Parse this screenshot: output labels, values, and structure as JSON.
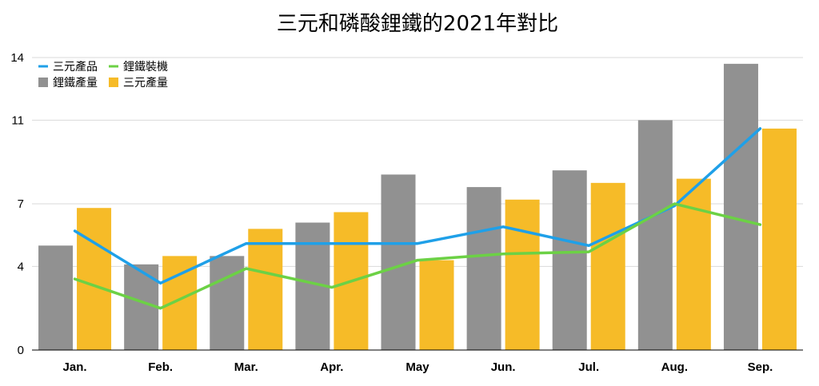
{
  "chart_data": {
    "type": "bar",
    "title": "三元和磷酸鋰鐵的2021年對比",
    "xlabel": "",
    "ylabel": "",
    "categories": [
      "Jan.",
      "Feb.",
      "Mar.",
      "Apr.",
      "May",
      "Jun.",
      "Jul.",
      "Aug.",
      "Sep."
    ],
    "ylim": [
      0,
      14
    ],
    "yticks": [
      0,
      4,
      7,
      11,
      14
    ],
    "grid": true,
    "legend_position": "top-left",
    "series": [
      {
        "name": "鋰鐵產量",
        "kind": "bar",
        "color": "#919191",
        "values": [
          5.0,
          4.1,
          4.5,
          6.1,
          8.4,
          7.8,
          8.6,
          11.0,
          13.7
        ]
      },
      {
        "name": "三元產量",
        "kind": "bar",
        "color": "#F6BB28",
        "values": [
          6.8,
          4.5,
          5.8,
          6.6,
          4.3,
          7.2,
          8.0,
          8.2,
          10.6
        ]
      },
      {
        "name": "三元產品",
        "kind": "line",
        "color": "#1FA0E8",
        "values": [
          5.7,
          3.2,
          5.1,
          5.1,
          5.1,
          5.9,
          5.0,
          6.9,
          10.6
        ]
      },
      {
        "name": "鋰鐵裝機",
        "kind": "line",
        "color": "#6CD145",
        "values": [
          3.4,
          2.0,
          3.9,
          3.0,
          4.3,
          4.6,
          4.7,
          7.0,
          6.0
        ]
      }
    ]
  }
}
